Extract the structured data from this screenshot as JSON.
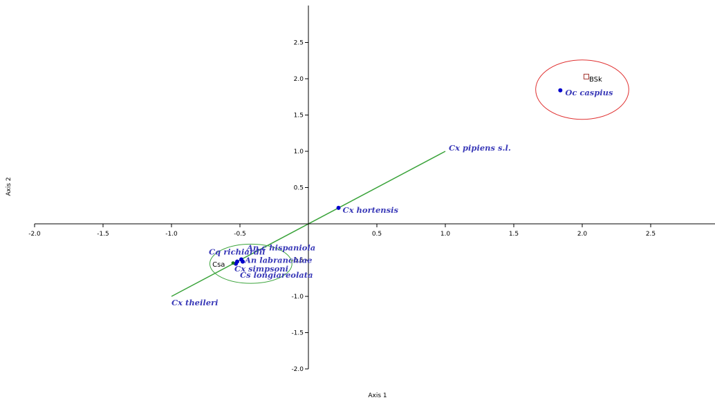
{
  "chart_data": {
    "type": "scatter",
    "xlabel": "Axis 1",
    "ylabel": "Axis 2",
    "xlim": [
      -2.0,
      2.95
    ],
    "ylim": [
      -2.0,
      3.0
    ],
    "x_ticks": [
      -2.0,
      -1.5,
      -1.0,
      -0.5,
      0.5,
      1.0,
      1.5,
      2.0,
      2.5
    ],
    "x_tick_labels": [
      "-2.0",
      "-1.5",
      "-1.0",
      "-0.5",
      "0.5",
      "1.0",
      "1.5",
      "2.0",
      "2.5"
    ],
    "y_ticks": [
      2.5,
      2.0,
      1.5,
      1.0,
      0.5,
      -0.5,
      -1.0,
      -1.5,
      -2.0
    ],
    "y_tick_labels": [
      "2.5",
      "2.0",
      "1.5",
      "1.0",
      "0.5",
      "-0.5",
      "-1.0",
      "-1.5",
      "-2.0"
    ],
    "grid": false,
    "species": [
      {
        "name": "Cx pipiens s.l.",
        "x": 1.0,
        "y": 1.0,
        "marker": false
      },
      {
        "name": "Cx hortensis",
        "x": 0.22,
        "y": 0.22,
        "marker": true
      },
      {
        "name": "Oc caspius",
        "x": 1.84,
        "y": 1.84,
        "marker": true
      },
      {
        "name": "Cx theileri",
        "x": -1.0,
        "y": -1.0,
        "marker": false
      },
      {
        "name": "An.c hispaniola",
        "x": -0.49,
        "y": -0.49,
        "marker": true
      },
      {
        "name": "Cq richiardii",
        "x": -0.52,
        "y": -0.52,
        "marker": true
      },
      {
        "name": "An labranchiae",
        "x": -0.48,
        "y": -0.52,
        "marker": true
      },
      {
        "name": "Cx simpsoni",
        "x": -0.53,
        "y": -0.55,
        "marker": true
      },
      {
        "name": "Cs longiareolata",
        "x": -0.5,
        "y": -0.55,
        "marker": false
      }
    ],
    "samples": [
      {
        "name": "BSk",
        "x": 2.03,
        "y": 2.03,
        "marker": "square"
      },
      {
        "name": "Csa",
        "x": -0.55,
        "y": -0.55,
        "marker": "none"
      }
    ],
    "vector": {
      "from": [
        -1.0,
        -1.0
      ],
      "to": [
        1.0,
        1.0
      ],
      "color": "#3aa33a"
    },
    "ellipses": [
      {
        "cx": 2.0,
        "cy": 1.85,
        "rx": 0.34,
        "ry": 0.41,
        "color": "#e03030"
      },
      {
        "cx": -0.42,
        "cy": -0.55,
        "rx": 0.3,
        "ry": 0.27,
        "color": "#3aa33a"
      }
    ],
    "colors": {
      "species_text": "#3a3ab8",
      "point": "#0000cc",
      "axis": "#000000",
      "sample_square": "#a0302a"
    }
  }
}
